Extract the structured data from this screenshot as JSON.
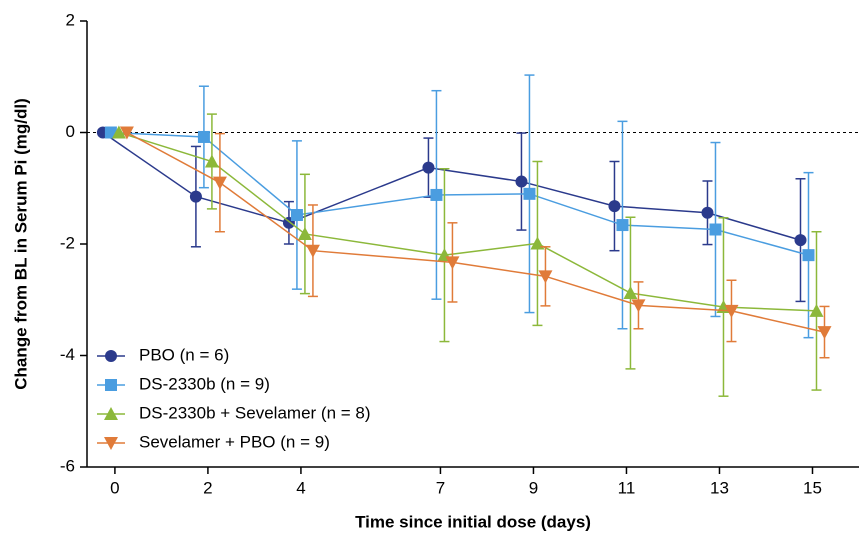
{
  "chart_data": {
    "type": "line",
    "x_label": "Time since initial dose (days)",
    "y_label": "Change from BL in Serum Pi (mg/dl)",
    "x": [
      0,
      2,
      4,
      7,
      9,
      11,
      13,
      15
    ],
    "xlim": [
      -0.6,
      16
    ],
    "xticks": [
      0,
      2,
      4,
      7,
      9,
      11,
      13,
      15
    ],
    "ylim": [
      -6,
      2
    ],
    "yticks": [
      -6,
      -4,
      -2,
      0,
      2
    ],
    "zero_line": true,
    "legend": "lower left",
    "series": [
      {
        "name": "PBO (n = 6)",
        "color": "#2b3a8c",
        "marker": "circle",
        "values": [
          0,
          -1.15,
          -1.62,
          -0.63,
          -0.88,
          -1.32,
          -1.44,
          -1.93
        ],
        "errors": [
          null,
          0.9,
          0.38,
          0.53,
          0.87,
          0.8,
          0.57,
          1.1
        ]
      },
      {
        "name": "DS-2330b (n = 9)",
        "color": "#4a9de0",
        "marker": "square",
        "values": [
          0,
          -0.08,
          -1.48,
          -1.12,
          -1.1,
          -1.66,
          -1.74,
          -2.2
        ],
        "errors": [
          null,
          0.91,
          1.33,
          1.87,
          2.13,
          1.86,
          1.56,
          1.48
        ]
      },
      {
        "name": "DS-2330b + Sevelamer (n = 8)",
        "color": "#8cb83a",
        "marker": "triangle-up",
        "values": [
          0,
          -0.52,
          -1.82,
          -2.2,
          -1.99,
          -2.88,
          -3.13,
          -3.2
        ],
        "errors": [
          null,
          0.85,
          1.07,
          1.55,
          1.47,
          1.36,
          1.6,
          1.42
        ]
      },
      {
        "name": "Sevelamer + PBO (n = 9)",
        "color": "#e07b39",
        "marker": "triangle-down",
        "values": [
          0,
          -0.9,
          -2.12,
          -2.33,
          -2.58,
          -3.1,
          -3.2,
          -3.58
        ],
        "errors": [
          null,
          0.88,
          0.82,
          0.71,
          0.53,
          0.42,
          0.55,
          0.46
        ]
      }
    ]
  }
}
